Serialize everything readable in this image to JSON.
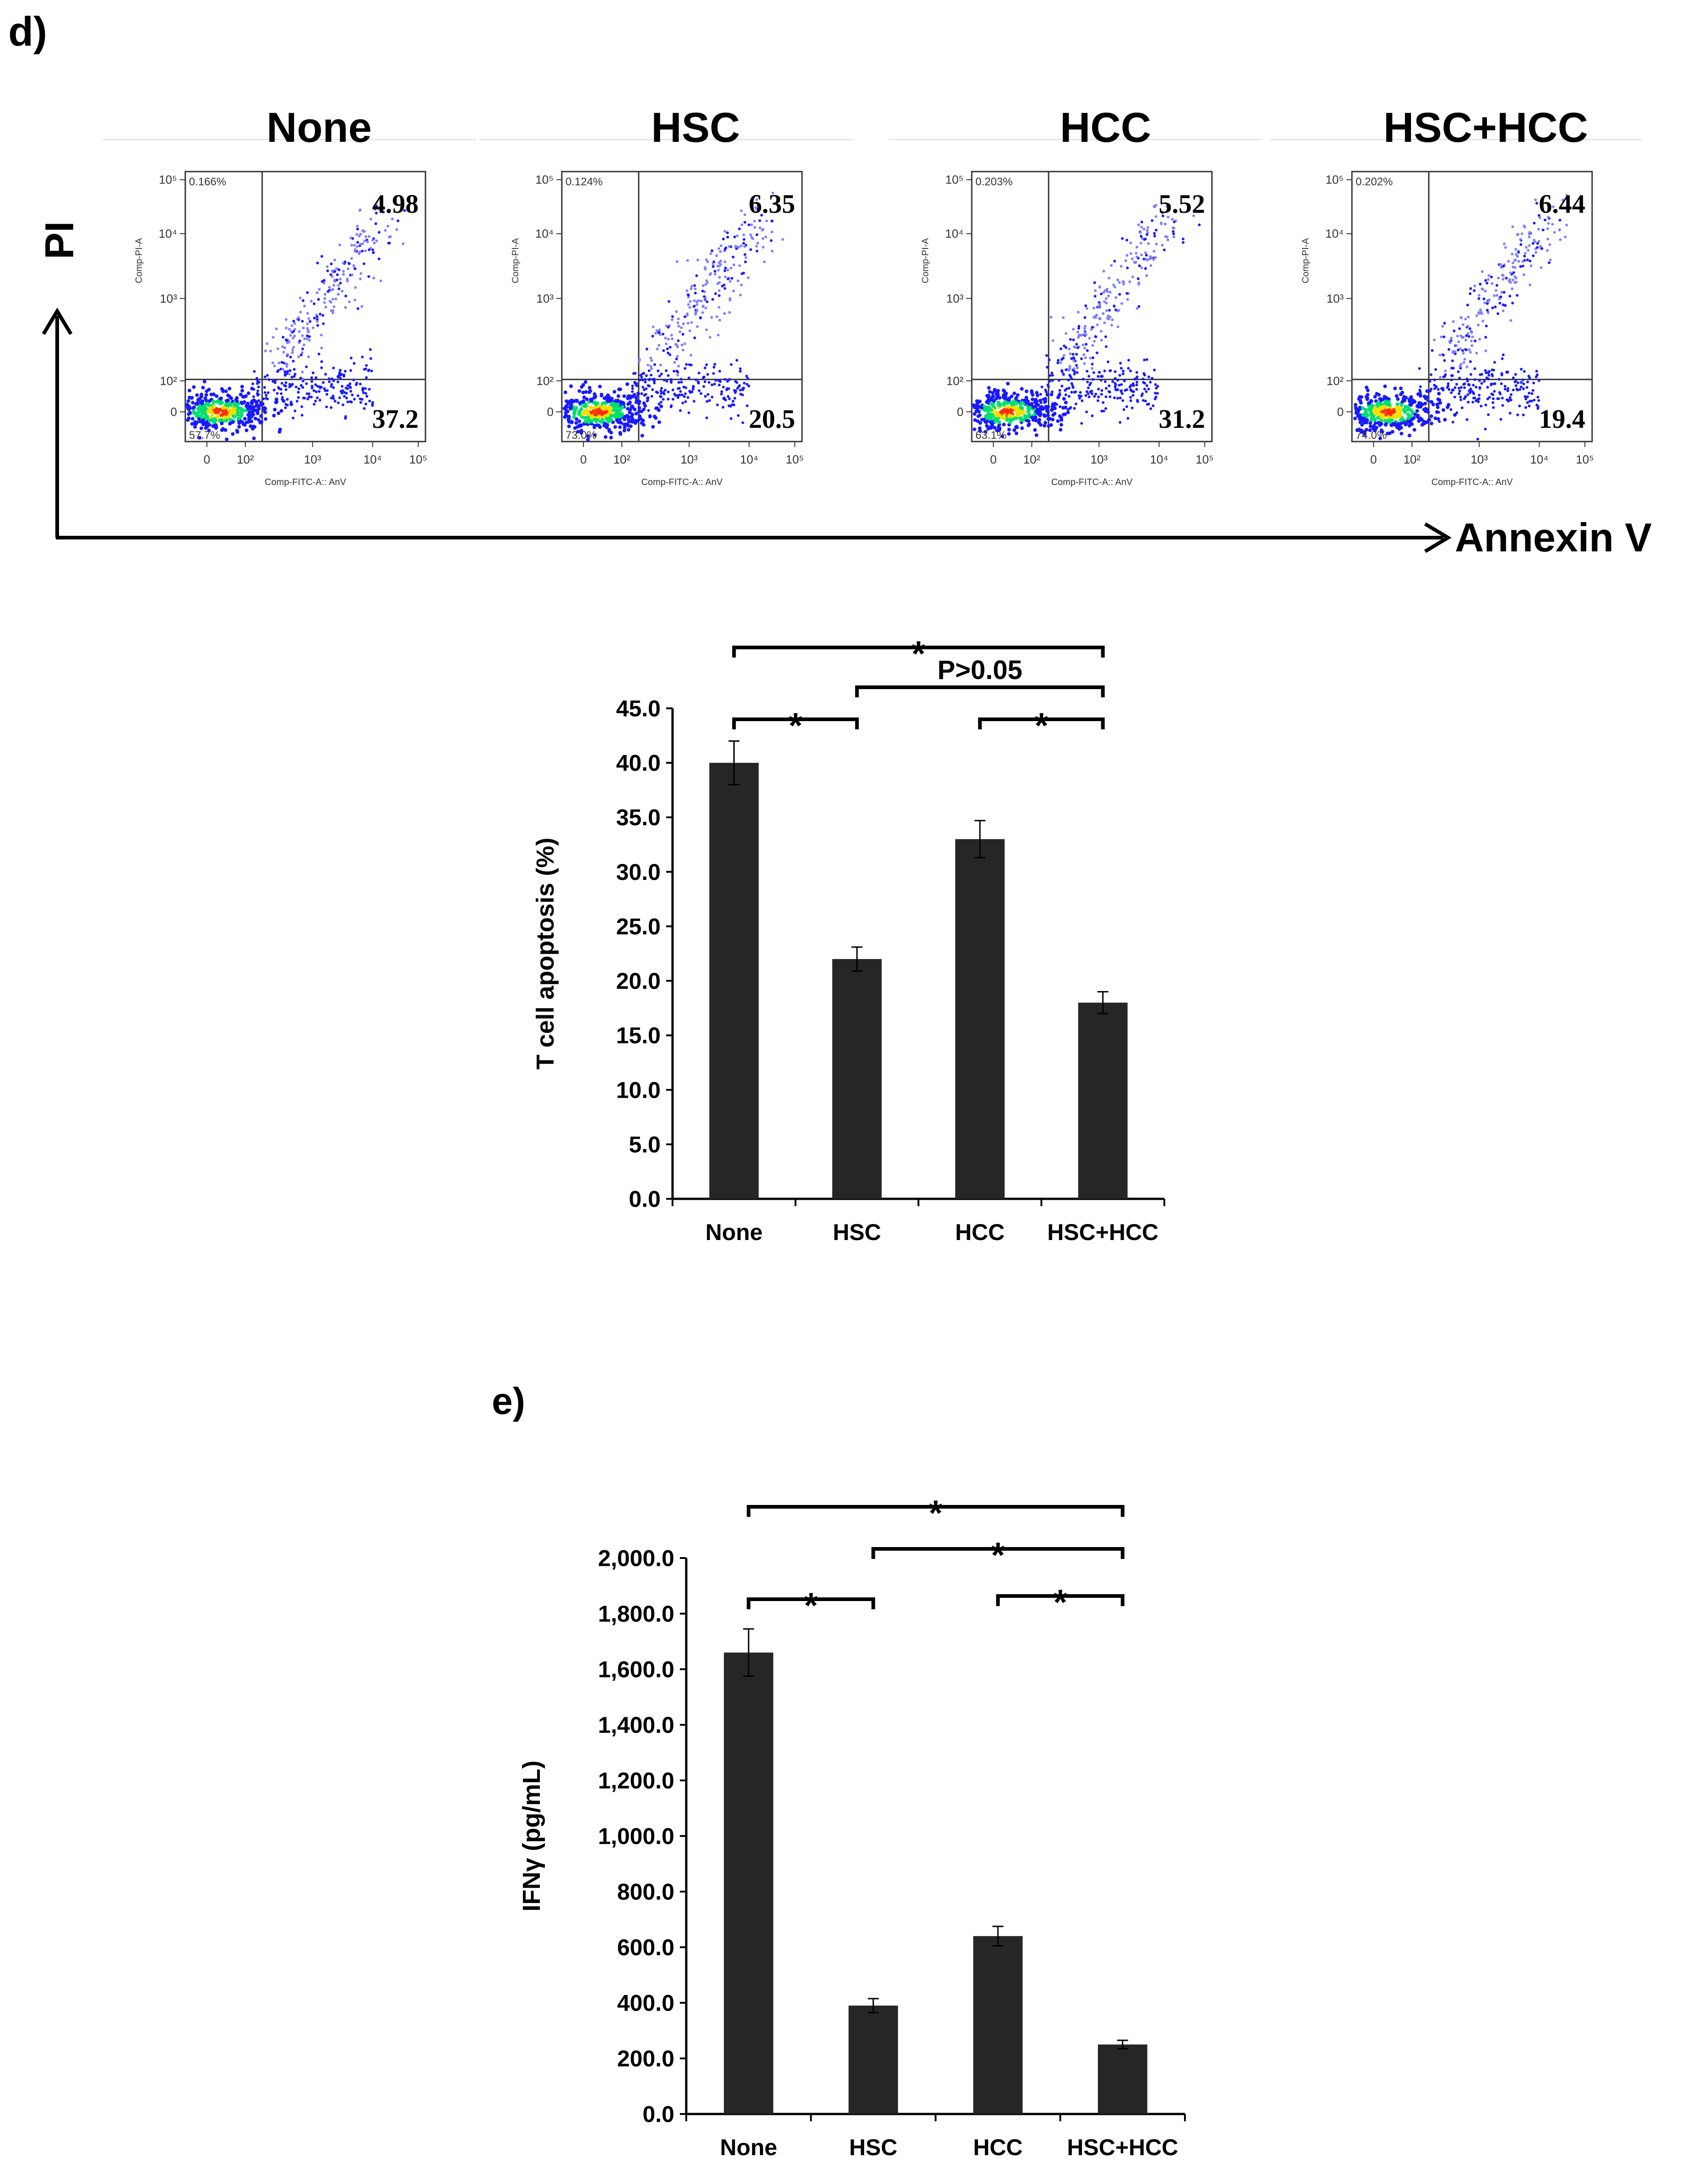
{
  "colors": {
    "bar": "#262626",
    "axis": "#000000",
    "dot_blue": "#1a1aff",
    "dot_light": "#8080ff",
    "dot_green": "#00e070",
    "dot_yellow": "#f0e000",
    "dot_red": "#ff3000"
  },
  "panel_d": {
    "label": "d)",
    "flow": {
      "y_axis_label": "PI",
      "x_axis_label": "Annexin V",
      "plot_ylabel": "Comp-PI-A",
      "plot_xlabel": "Comp-FITC-A:: AnV",
      "ticks": [
        "0",
        "10²",
        "10³",
        "10⁴",
        "10⁵"
      ],
      "plots": [
        {
          "title": "None",
          "q_upper_left": "0.166%",
          "q_upper_right": "4.98",
          "q_lower_right": "37.2",
          "q_lower_left": "57.7%",
          "seed": 11
        },
        {
          "title": "HSC",
          "q_upper_left": "0.124%",
          "q_upper_right": "6.35",
          "q_lower_right": "20.5",
          "q_lower_left": "73.0%",
          "seed": 23
        },
        {
          "title": "HCC",
          "q_upper_left": "0.203%",
          "q_upper_right": "5.52",
          "q_lower_right": "31.2",
          "q_lower_left": "63.1%",
          "seed": 37
        },
        {
          "title": "HSC+HCC",
          "q_upper_left": "0.202%",
          "q_upper_right": "6.44",
          "q_lower_right": "19.4",
          "q_lower_left": "74.0%",
          "seed": 51
        }
      ]
    }
  },
  "panel_e": {
    "label": "e)"
  },
  "chart_data": [
    {
      "type": "bar",
      "title": "",
      "categories": [
        "None",
        "HSC",
        "HCC",
        "HSC+HCC"
      ],
      "values": [
        40.0,
        22.0,
        33.0,
        18.0
      ],
      "errors": [
        2.0,
        1.1,
        1.7,
        1.0
      ],
      "ylabel": "T cell apoptosis (%)",
      "xlabel": "",
      "ylim": [
        0,
        45
      ],
      "yticks": [
        "0.0",
        "5.0",
        "10.0",
        "15.0",
        "20.0",
        "25.0",
        "30.0",
        "35.0",
        "40.0",
        "45.0"
      ],
      "significance": [
        {
          "from": 0,
          "to": 3,
          "label": "*"
        },
        {
          "from": 1,
          "to": 3,
          "label": "P>0.05"
        },
        {
          "from": 0,
          "to": 1,
          "label": "*"
        },
        {
          "from": 2,
          "to": 3,
          "label": "*"
        }
      ]
    },
    {
      "type": "bar",
      "title": "",
      "categories": [
        "None",
        "HSC",
        "HCC",
        "HSC+HCC"
      ],
      "values": [
        1660,
        390,
        640,
        250
      ],
      "errors": [
        85,
        25,
        35,
        15
      ],
      "ylabel": "IFNγ (pg/mL)",
      "xlabel": "",
      "ylim": [
        0,
        2000
      ],
      "yticks": [
        "0.0",
        "200.0",
        "400.0",
        "600.0",
        "800.0",
        "1,000.0",
        "1,200.0",
        "1,400.0",
        "1,600.0",
        "1,800.0",
        "2,000.0"
      ],
      "significance": [
        {
          "from": 0,
          "to": 3,
          "label": "*"
        },
        {
          "from": 1,
          "to": 3,
          "label": "*"
        },
        {
          "from": 0,
          "to": 1,
          "label": "*"
        },
        {
          "from": 2,
          "to": 3,
          "label": "*"
        }
      ]
    }
  ]
}
